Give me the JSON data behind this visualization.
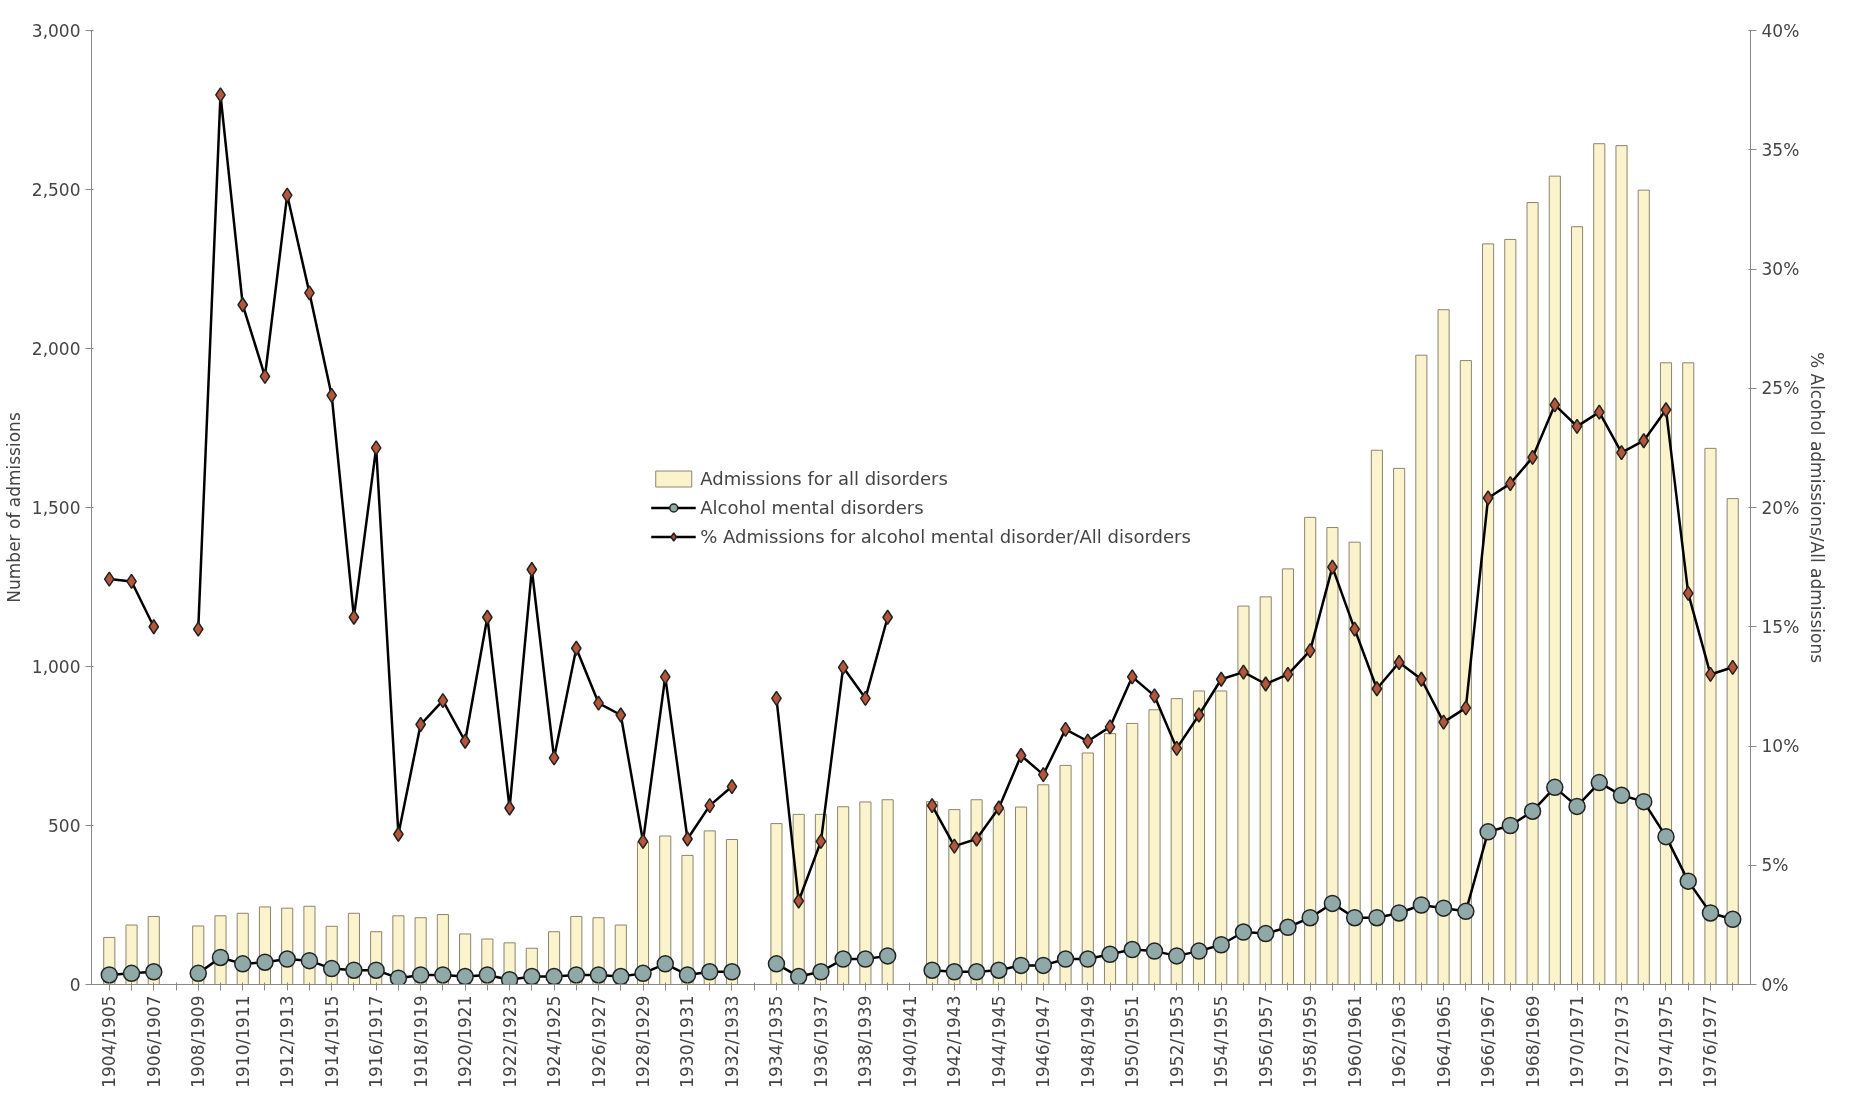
{
  "chart_data": {
    "type": "bar",
    "ylabel": "Number of admissions",
    "y2label": "% Alcohol admissions/All admissions",
    "categories": [
      "1904/1905",
      null,
      "1906/1907",
      null,
      "1908/1909",
      null,
      "1910/1911",
      null,
      "1912/1913",
      null,
      "1914/1915",
      null,
      "1916/1917",
      null,
      "1918/1919",
      null,
      "1920/1921",
      null,
      "1922/1923",
      null,
      "1924/1925",
      null,
      "1926/1927",
      null,
      "1928/1929",
      null,
      "1930/1931",
      null,
      "1932/1933",
      null,
      "1934/1935",
      null,
      "1936/1937",
      null,
      "1938/1939",
      null,
      "1940/1941",
      null,
      "1942/1943",
      null,
      "1944/1945",
      null,
      "1946/1947",
      null,
      "1948/1949",
      null,
      "1950/1951",
      null,
      "1952/1953",
      null,
      "1954/1955",
      null,
      "1956/1957",
      null,
      "1958/1959",
      null,
      "1960/1961",
      null,
      "1962/1963",
      null,
      "1964/1965",
      null,
      "1966/1967",
      null,
      "1968/1969",
      null,
      "1970/1971",
      null,
      "1972/1973",
      null,
      "1974/1975",
      null,
      "1976/1977",
      null
    ],
    "series": [
      {
        "name": "Admissions for all disorders",
        "color": "#fbf3cc",
        "values": [
          148,
          187,
          214,
          null,
          184,
          216,
          224,
          244,
          240,
          246,
          183,
          224,
          166,
          216,
          210,
          220,
          159,
          143,
          131,
          114,
          166,
          214,
          210,
          187,
          448,
          467,
          406,
          483,
          456,
          null,
          506,
          535,
          535,
          559,
          574,
          581,
          null,
          575,
          550,
          581,
          550,
          558,
          628,
          689,
          728,
          789,
          821,
          864,
          899,
          923,
          923,
          1190,
          1219,
          1307,
          1469,
          1437,
          1391,
          1680,
          1623,
          1979,
          2122,
          1962,
          2329,
          2343,
          2459,
          2542,
          2383,
          2644,
          2638,
          2498,
          1955,
          1955,
          1686,
          1528
        ]
      },
      {
        "name": "Alcohol mental disorders",
        "type": "line",
        "marker": "circle",
        "color": "#8fa9a9",
        "values": [
          30,
          35,
          40,
          null,
          35,
          85,
          65,
          70,
          80,
          75,
          50,
          45,
          45,
          20,
          30,
          30,
          25,
          30,
          15,
          25,
          25,
          30,
          30,
          25,
          35,
          65,
          30,
          40,
          40,
          null,
          65,
          25,
          40,
          80,
          80,
          90,
          null,
          45,
          40,
          40,
          45,
          60,
          60,
          80,
          80,
          95,
          110,
          105,
          90,
          105,
          125,
          165,
          160,
          180,
          210,
          255,
          210,
          210,
          225,
          250,
          240,
          230,
          480,
          500,
          545,
          620,
          560,
          635,
          595,
          575,
          465,
          325,
          225,
          205
        ]
      },
      {
        "name": "% Admissions for alcohol mental disorder/All disorders",
        "type": "line",
        "marker": "diamond",
        "axis": "y2",
        "color": "#b5553a",
        "values": [
          17.0,
          16.9,
          15.0,
          null,
          14.9,
          37.3,
          28.5,
          25.5,
          33.1,
          29.0,
          24.7,
          15.4,
          22.5,
          6.3,
          10.9,
          11.9,
          10.2,
          15.4,
          7.4,
          17.4,
          9.5,
          14.1,
          11.8,
          11.3,
          6.0,
          12.9,
          6.1,
          7.5,
          8.3,
          null,
          12.0,
          3.5,
          6.0,
          13.3,
          12.0,
          15.4,
          null,
          7.5,
          5.8,
          6.1,
          7.4,
          9.6,
          8.8,
          10.7,
          10.2,
          10.8,
          12.9,
          12.1,
          9.9,
          11.3,
          12.8,
          13.1,
          12.6,
          13.0,
          14.0,
          17.5,
          14.9,
          12.4,
          13.5,
          12.8,
          11.0,
          11.6,
          20.4,
          21.0,
          22.1,
          24.3,
          23.4,
          24.0,
          22.3,
          22.8,
          24.1,
          16.4,
          13.0,
          13.3
        ]
      }
    ],
    "ylim": [
      0,
      3000
    ],
    "yticks": [
      0,
      500,
      {
        "value": 1000,
        "label": "1,000"
      },
      {
        "value": 1500,
        "label": "1,500"
      },
      {
        "value": 2000,
        "label": "2,000"
      },
      {
        "value": 2500,
        "label": "2,500"
      },
      {
        "value": 3000,
        "label": "3,000"
      }
    ],
    "y2lim": [
      0,
      40
    ],
    "y2ticks": [
      {
        "value": 0,
        "label": "0%"
      },
      {
        "value": 5,
        "label": "5%"
      },
      {
        "value": 10,
        "label": "10%"
      },
      {
        "value": 15,
        "label": "15%"
      },
      {
        "value": 20,
        "label": "20%"
      },
      {
        "value": 25,
        "label": "25%"
      },
      {
        "value": 30,
        "label": "30%"
      },
      {
        "value": 35,
        "label": "35%"
      },
      {
        "value": 40,
        "label": "40%"
      }
    ],
    "grid": false,
    "legend": "center"
  }
}
